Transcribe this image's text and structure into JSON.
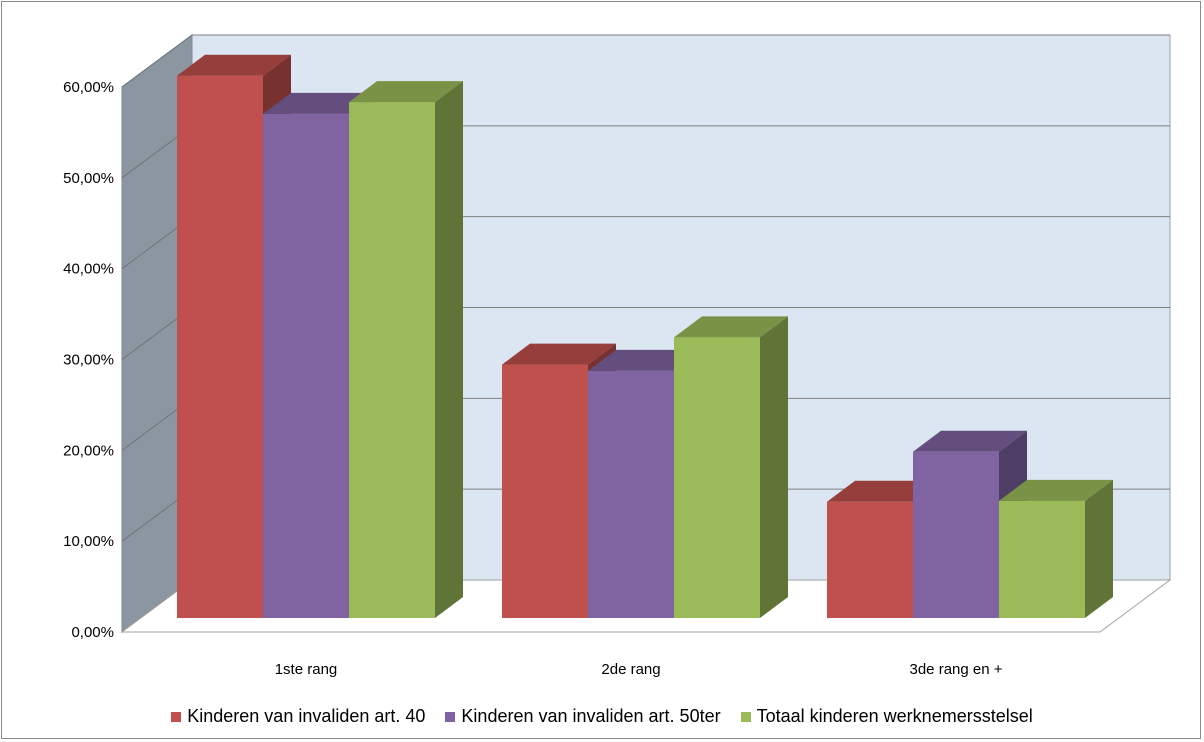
{
  "chart_data": {
    "type": "bar",
    "title": "",
    "xlabel": "",
    "ylabel": "",
    "categories": [
      "1ste rang",
      "2de rang",
      "3de rang en +"
    ],
    "series": [
      {
        "name": "Kinderen van invaliden art. 40",
        "values": [
          59.7,
          27.9,
          12.8
        ],
        "color": "#c0504d"
      },
      {
        "name": "Kinderen van invaliden art. 50ter",
        "values": [
          55.5,
          27.2,
          18.3
        ],
        "color": "#8064a2"
      },
      {
        "name": "Totaal kinderen werknemersstelsel",
        "values": [
          56.8,
          30.9,
          12.9
        ],
        "color": "#9bbb59"
      }
    ],
    "ylim": [
      0,
      60
    ],
    "yticks": [
      "0,00%",
      "10,00%",
      "20,00%",
      "30,00%",
      "40,00%",
      "50,00%",
      "60,00%"
    ],
    "grid": true,
    "legend": "bottom",
    "style": "3d-clustered-column",
    "wall_color": "#dce6f2",
    "side_wall_color": "#8c96a0"
  }
}
